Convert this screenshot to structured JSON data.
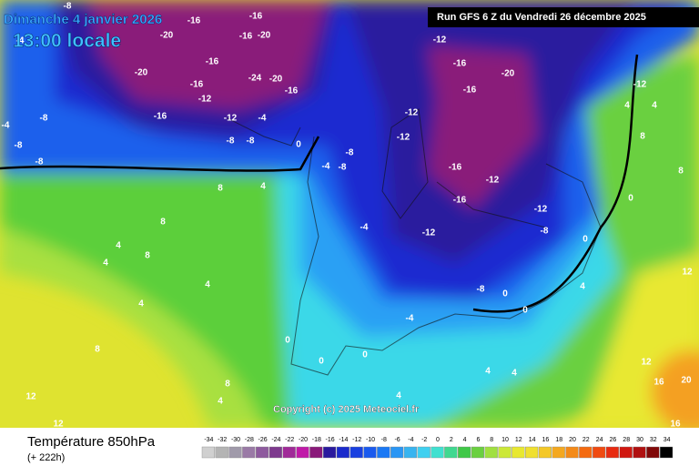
{
  "header": {
    "date": "Dimanche 4 janvier 2026",
    "time": "13:00 locale",
    "run": "Run GFS 6 Z du Vendredi 26 décembre 2025"
  },
  "copyright": "Copyright (c) 2025 Meteociel.fr",
  "legend": {
    "title": "Température 850hPa",
    "lead": "(+ 222h)",
    "scale": [
      -34,
      -32,
      -30,
      -28,
      -26,
      -24,
      -22,
      -20,
      -18,
      -16,
      -14,
      -12,
      -10,
      -8,
      -6,
      -4,
      -2,
      0,
      2,
      4,
      6,
      8,
      10,
      12,
      14,
      16,
      18,
      20,
      22,
      24,
      26,
      28,
      30,
      32,
      34
    ],
    "colors": [
      "#d0d0d0",
      "#b4b4b4",
      "#a09aaa",
      "#9a7aa6",
      "#8e5a9e",
      "#7e3a8e",
      "#a02a98",
      "#c01aa8",
      "#8a1a7a",
      "#2a1a9e",
      "#1a2acc",
      "#1a40e0",
      "#1a5aee",
      "#1a78f4",
      "#2a96f4",
      "#38b4f0",
      "#40d0f0",
      "#40e0d0",
      "#40d890",
      "#40c848",
      "#6ad040",
      "#a0e040",
      "#cce838",
      "#e8e830",
      "#f0e030",
      "#f4c828",
      "#f4a820",
      "#f48a18",
      "#f46a10",
      "#f04a10",
      "#e82a10",
      "#d01810",
      "#b01010",
      "#800808",
      "#000000"
    ]
  },
  "map_labels": [
    -8,
    -16,
    -20,
    -16,
    -20,
    -16,
    -12,
    -16,
    -20,
    -16,
    -12,
    -12,
    -16,
    -12,
    -16,
    -12,
    -8,
    -12,
    -4,
    -4,
    -8,
    -8,
    -8,
    -20,
    -16,
    -16,
    -12,
    -16,
    -12,
    -4,
    -8,
    -8,
    -24,
    -20,
    -16,
    -8,
    -8,
    -4,
    0,
    4,
    8,
    8,
    4,
    8,
    4,
    8,
    12,
    12,
    4,
    4,
    8,
    4,
    0,
    0,
    0,
    -4,
    -8,
    0,
    0,
    4,
    4,
    4,
    4,
    12,
    16,
    20,
    16,
    12,
    8,
    8,
    4,
    4,
    -12,
    0,
    0,
    -4
  ]
}
